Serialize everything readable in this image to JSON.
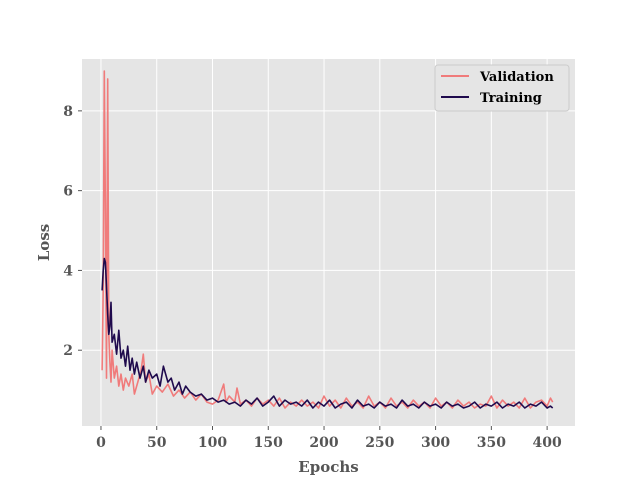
{
  "chart_data": {
    "type": "line",
    "title": "",
    "xlabel": "Epochs",
    "ylabel": "Loss",
    "xlim": [
      -17,
      425
    ],
    "ylim": [
      0.1,
      9.3
    ],
    "xticks": [
      0,
      50,
      100,
      150,
      200,
      250,
      300,
      350,
      400
    ],
    "yticks": [
      2,
      4,
      6,
      8
    ],
    "grid": true,
    "legend_position": "top-right",
    "colors": {
      "plot_bg": "#e5e5e5",
      "grid": "#ffffff"
    },
    "series": [
      {
        "name": "Validation",
        "color": "#f07b7b",
        "points": [
          [
            1,
            1.5
          ],
          [
            2,
            3.5
          ],
          [
            3,
            9.0
          ],
          [
            4,
            5.5
          ],
          [
            5,
            1.3
          ],
          [
            6,
            8.8
          ],
          [
            7,
            2.4
          ],
          [
            8,
            1.7
          ],
          [
            9,
            1.2
          ],
          [
            10,
            2.0
          ],
          [
            12,
            1.3
          ],
          [
            14,
            1.6
          ],
          [
            16,
            1.1
          ],
          [
            18,
            1.4
          ],
          [
            20,
            1.0
          ],
          [
            22,
            1.3
          ],
          [
            25,
            1.1
          ],
          [
            28,
            1.4
          ],
          [
            30,
            0.9
          ],
          [
            33,
            1.2
          ],
          [
            36,
            1.5
          ],
          [
            38,
            1.9
          ],
          [
            40,
            1.2
          ],
          [
            43,
            1.4
          ],
          [
            46,
            0.9
          ],
          [
            50,
            1.1
          ],
          [
            55,
            0.95
          ],
          [
            60,
            1.15
          ],
          [
            65,
            0.85
          ],
          [
            70,
            1.0
          ],
          [
            75,
            0.8
          ],
          [
            80,
            0.95
          ],
          [
            85,
            0.75
          ],
          [
            90,
            0.9
          ],
          [
            95,
            0.7
          ],
          [
            100,
            0.65
          ],
          [
            105,
            0.75
          ],
          [
            110,
            1.15
          ],
          [
            112,
            0.7
          ],
          [
            115,
            0.85
          ],
          [
            120,
            0.7
          ],
          [
            122,
            1.05
          ],
          [
            125,
            0.65
          ],
          [
            130,
            0.75
          ],
          [
            135,
            0.6
          ],
          [
            140,
            0.8
          ],
          [
            145,
            0.65
          ],
          [
            150,
            0.75
          ],
          [
            155,
            0.6
          ],
          [
            160,
            0.8
          ],
          [
            165,
            0.55
          ],
          [
            170,
            0.7
          ],
          [
            175,
            0.6
          ],
          [
            180,
            0.75
          ],
          [
            185,
            0.6
          ],
          [
            190,
            0.7
          ],
          [
            195,
            0.55
          ],
          [
            200,
            0.85
          ],
          [
            205,
            0.6
          ],
          [
            210,
            0.75
          ],
          [
            215,
            0.55
          ],
          [
            220,
            0.8
          ],
          [
            225,
            0.6
          ],
          [
            230,
            0.7
          ],
          [
            235,
            0.55
          ],
          [
            240,
            0.85
          ],
          [
            245,
            0.6
          ],
          [
            250,
            0.7
          ],
          [
            255,
            0.55
          ],
          [
            260,
            0.8
          ],
          [
            265,
            0.6
          ],
          [
            270,
            0.7
          ],
          [
            275,
            0.55
          ],
          [
            280,
            0.75
          ],
          [
            285,
            0.6
          ],
          [
            290,
            0.7
          ],
          [
            295,
            0.55
          ],
          [
            300,
            0.8
          ],
          [
            305,
            0.6
          ],
          [
            310,
            0.7
          ],
          [
            315,
            0.55
          ],
          [
            320,
            0.75
          ],
          [
            325,
            0.6
          ],
          [
            330,
            0.7
          ],
          [
            335,
            0.55
          ],
          [
            340,
            0.65
          ],
          [
            345,
            0.6
          ],
          [
            350,
            0.85
          ],
          [
            355,
            0.55
          ],
          [
            360,
            0.75
          ],
          [
            365,
            0.6
          ],
          [
            370,
            0.7
          ],
          [
            375,
            0.55
          ],
          [
            380,
            0.8
          ],
          [
            385,
            0.55
          ],
          [
            390,
            0.7
          ],
          [
            395,
            0.75
          ],
          [
            400,
            0.6
          ],
          [
            403,
            0.8
          ],
          [
            405,
            0.7
          ]
        ]
      },
      {
        "name": "Training",
        "color": "#1f0a4d",
        "points": [
          [
            1,
            3.5
          ],
          [
            2,
            4.0
          ],
          [
            3,
            4.3
          ],
          [
            4,
            4.2
          ],
          [
            5,
            3.6
          ],
          [
            6,
            2.9
          ],
          [
            7,
            2.4
          ],
          [
            8,
            2.6
          ],
          [
            9,
            3.2
          ],
          [
            10,
            2.2
          ],
          [
            12,
            2.4
          ],
          [
            14,
            1.9
          ],
          [
            16,
            2.5
          ],
          [
            18,
            1.8
          ],
          [
            20,
            2.0
          ],
          [
            22,
            1.6
          ],
          [
            24,
            2.1
          ],
          [
            26,
            1.5
          ],
          [
            28,
            1.8
          ],
          [
            30,
            1.4
          ],
          [
            32,
            1.7
          ],
          [
            35,
            1.3
          ],
          [
            38,
            1.6
          ],
          [
            40,
            1.2
          ],
          [
            43,
            1.5
          ],
          [
            46,
            1.3
          ],
          [
            50,
            1.4
          ],
          [
            53,
            1.1
          ],
          [
            56,
            1.6
          ],
          [
            60,
            1.2
          ],
          [
            63,
            1.3
          ],
          [
            66,
            1.0
          ],
          [
            70,
            1.2
          ],
          [
            73,
            0.9
          ],
          [
            76,
            1.1
          ],
          [
            80,
            0.95
          ],
          [
            85,
            0.85
          ],
          [
            90,
            0.9
          ],
          [
            95,
            0.75
          ],
          [
            100,
            0.8
          ],
          [
            105,
            0.7
          ],
          [
            110,
            0.75
          ],
          [
            115,
            0.65
          ],
          [
            120,
            0.7
          ],
          [
            125,
            0.6
          ],
          [
            130,
            0.75
          ],
          [
            135,
            0.65
          ],
          [
            140,
            0.8
          ],
          [
            145,
            0.6
          ],
          [
            150,
            0.7
          ],
          [
            155,
            0.85
          ],
          [
            160,
            0.6
          ],
          [
            165,
            0.75
          ],
          [
            170,
            0.65
          ],
          [
            175,
            0.7
          ],
          [
            180,
            0.6
          ],
          [
            185,
            0.75
          ],
          [
            190,
            0.55
          ],
          [
            195,
            0.7
          ],
          [
            200,
            0.6
          ],
          [
            205,
            0.75
          ],
          [
            210,
            0.55
          ],
          [
            215,
            0.65
          ],
          [
            220,
            0.7
          ],
          [
            225,
            0.55
          ],
          [
            230,
            0.75
          ],
          [
            235,
            0.6
          ],
          [
            240,
            0.65
          ],
          [
            245,
            0.55
          ],
          [
            250,
            0.7
          ],
          [
            255,
            0.6
          ],
          [
            260,
            0.65
          ],
          [
            265,
            0.55
          ],
          [
            270,
            0.75
          ],
          [
            275,
            0.6
          ],
          [
            280,
            0.65
          ],
          [
            285,
            0.55
          ],
          [
            290,
            0.7
          ],
          [
            295,
            0.6
          ],
          [
            300,
            0.65
          ],
          [
            305,
            0.55
          ],
          [
            310,
            0.7
          ],
          [
            315,
            0.6
          ],
          [
            320,
            0.65
          ],
          [
            325,
            0.55
          ],
          [
            330,
            0.6
          ],
          [
            335,
            0.7
          ],
          [
            340,
            0.55
          ],
          [
            345,
            0.65
          ],
          [
            350,
            0.6
          ],
          [
            355,
            0.7
          ],
          [
            360,
            0.55
          ],
          [
            365,
            0.65
          ],
          [
            370,
            0.6
          ],
          [
            375,
            0.7
          ],
          [
            380,
            0.55
          ],
          [
            385,
            0.65
          ],
          [
            390,
            0.6
          ],
          [
            395,
            0.7
          ],
          [
            400,
            0.55
          ],
          [
            403,
            0.6
          ],
          [
            405,
            0.55
          ]
        ]
      }
    ]
  }
}
